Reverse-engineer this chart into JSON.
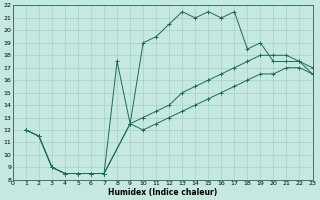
{
  "xlabel": "Humidex (Indice chaleur)",
  "bg_color": "#c5e8e0",
  "grid_color": "#a8cfc8",
  "line_color": "#1a6b5a",
  "xlim": [
    0,
    23
  ],
  "ylim": [
    8,
    22
  ],
  "xticks": [
    0,
    1,
    2,
    3,
    4,
    5,
    6,
    7,
    8,
    9,
    10,
    11,
    12,
    13,
    14,
    15,
    16,
    17,
    18,
    19,
    20,
    21,
    22,
    23
  ],
  "yticks": [
    8,
    9,
    10,
    11,
    12,
    13,
    14,
    15,
    16,
    17,
    18,
    19,
    20,
    21,
    22
  ],
  "line1_x": [
    1,
    2,
    3,
    4,
    5,
    6,
    7,
    8,
    9,
    10,
    11,
    12,
    13,
    14,
    15,
    16,
    17,
    18,
    19,
    20,
    21,
    22,
    23
  ],
  "line1_y": [
    12,
    11.5,
    9,
    8.5,
    8.5,
    8.5,
    8.5,
    17.5,
    12.5,
    19,
    19.5,
    20.5,
    21.5,
    21,
    21.5,
    21,
    21.5,
    18.5,
    19,
    17.5,
    17.5,
    17.5,
    16.5
  ],
  "line2_x": [
    1,
    2,
    3,
    4,
    5,
    6,
    7,
    9,
    10,
    11,
    12,
    13,
    14,
    15,
    16,
    17,
    18,
    19,
    20,
    21,
    22,
    23
  ],
  "line2_y": [
    12,
    11.5,
    9,
    8.5,
    8.5,
    8.5,
    8.5,
    12.5,
    13,
    13.5,
    14,
    15,
    15.5,
    16,
    16.5,
    17,
    17.5,
    18,
    18,
    18,
    17.5,
    17
  ],
  "line3_x": [
    1,
    2,
    3,
    4,
    5,
    6,
    7,
    9,
    10,
    11,
    12,
    13,
    14,
    15,
    16,
    17,
    18,
    19,
    20,
    21,
    22,
    23
  ],
  "line3_y": [
    12,
    11.5,
    9,
    8.5,
    8.5,
    8.5,
    8.5,
    12.5,
    12,
    12.5,
    13,
    13.5,
    14,
    14.5,
    15,
    15.5,
    16,
    16.5,
    16.5,
    17,
    17,
    16.5
  ]
}
